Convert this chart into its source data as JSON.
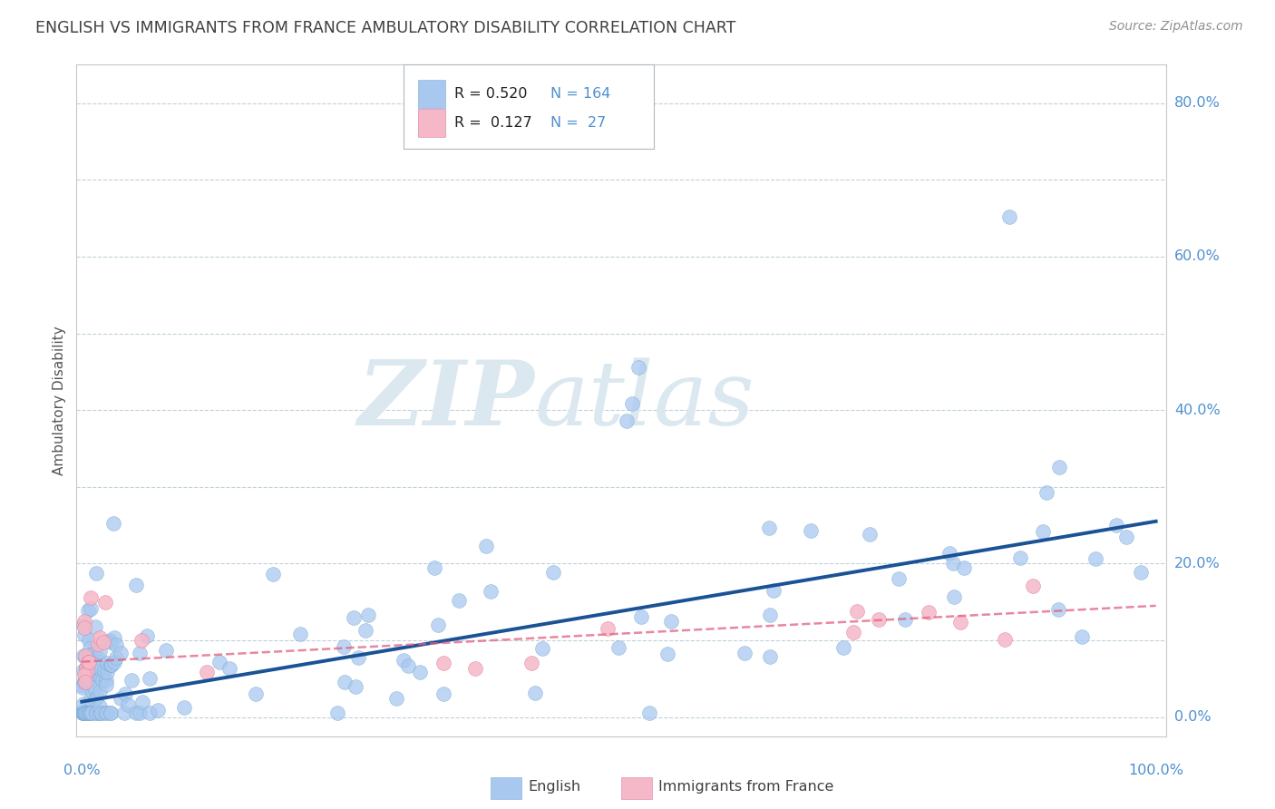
{
  "title": "ENGLISH VS IMMIGRANTS FROM FRANCE AMBULATORY DISABILITY CORRELATION CHART",
  "source": "Source: ZipAtlas.com",
  "ylabel": "Ambulatory Disability",
  "english_R": 0.52,
  "english_N": 164,
  "immigrants_R": 0.127,
  "immigrants_N": 27,
  "english_color": "#a8c8f0",
  "english_edge_color": "#7aaad0",
  "english_line_color": "#1a5296",
  "immigrants_color": "#f5b8c8",
  "immigrants_edge_color": "#e080a0",
  "immigrants_line_color": "#e06080",
  "background_color": "#ffffff",
  "grid_color": "#b8ccd8",
  "title_color": "#404040",
  "axis_label_color": "#5090d0",
  "watermark_color": "#dce8f0",
  "eng_trend_start_x": 0.0,
  "eng_trend_start_y": 0.02,
  "eng_trend_end_x": 1.0,
  "eng_trend_end_y": 0.255,
  "immig_trend_start_x": 0.0,
  "immig_trend_start_y": 0.072,
  "immig_trend_end_x": 1.0,
  "immig_trend_end_y": 0.145,
  "ylim_min": -0.025,
  "ylim_max": 0.85,
  "xlim_min": -0.005,
  "xlim_max": 1.01
}
